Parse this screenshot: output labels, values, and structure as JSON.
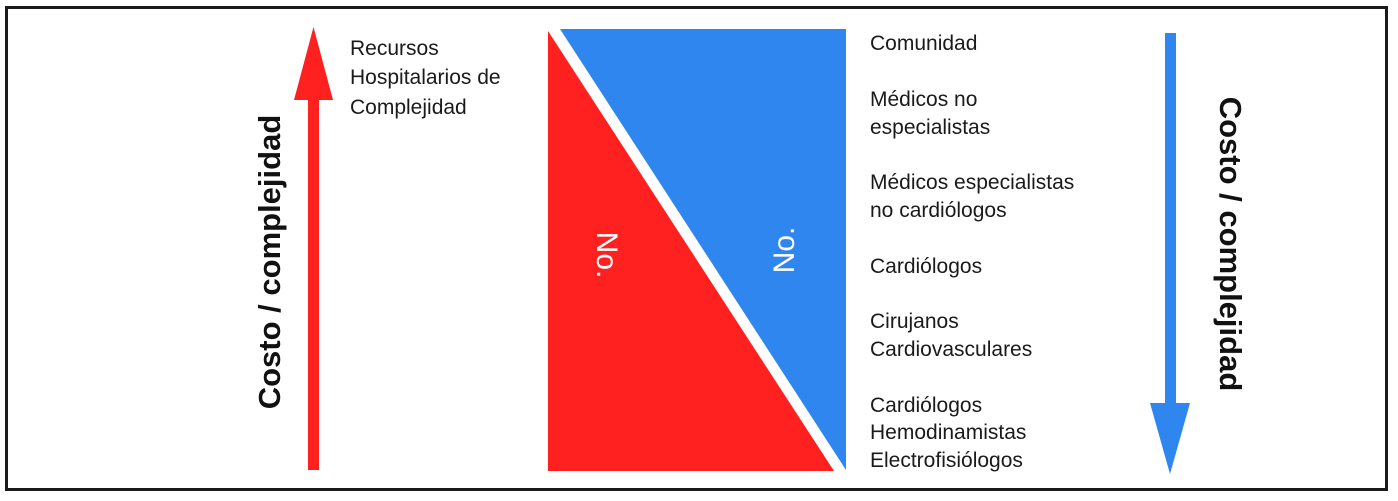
{
  "left_axis_label": "Costo / complejidad",
  "right_axis_label": "Costo / complejidad",
  "hospital_resources": [
    "Recursos",
    "Hospitalarios de",
    "Complejidad"
  ],
  "red_triangle_label": "No.",
  "blue_triangle_label": "No.",
  "levels": [
    {
      "lines": [
        "Comunidad"
      ]
    },
    {
      "lines": [
        "Médicos no",
        "especialistas"
      ]
    },
    {
      "lines": [
        "Médicos especialistas",
        "no cardiólogos"
      ]
    },
    {
      "lines": [
        "Cardiólogos"
      ]
    },
    {
      "lines": [
        "Cirujanos",
        "Cardiovasculares"
      ]
    },
    {
      "lines": [
        "Cardiólogos",
        "Hemodinamistas",
        "Electrofisiólogos"
      ]
    }
  ],
  "colors": {
    "red": "#ff2020",
    "blue": "#2f86ee",
    "frame": "#1a1a1a"
  }
}
